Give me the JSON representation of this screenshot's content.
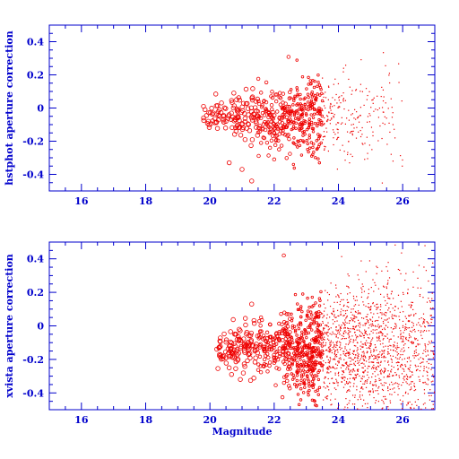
{
  "colors": {
    "axis": "#0000cc",
    "points": "#ee0000",
    "background": "#ffffff"
  },
  "chart_data": [
    {
      "type": "scatter",
      "title": "",
      "xlabel": "",
      "ylabel": "hstphot aperture correction",
      "xlim": [
        15,
        27
      ],
      "ylim": [
        -0.5,
        0.5
      ],
      "xticks": [
        16,
        18,
        20,
        22,
        24,
        26
      ],
      "yticks": [
        -0.4,
        -0.2,
        0,
        0.2,
        0.4
      ],
      "grid": false,
      "description": "circles grow larger for brighter stars",
      "cloud": {
        "count": 700,
        "seed": 17,
        "mag_range": [
          19.8,
          26.0
        ],
        "mag_peak": 22.8,
        "center": -0.06,
        "spread_bright": 0.04,
        "spread_faint": 0.18
      },
      "points": [
        [
          19.8,
          0.01
        ],
        [
          20.1,
          -0.03
        ],
        [
          20.3,
          -0.05
        ],
        [
          20.5,
          -0.08
        ],
        [
          20.6,
          -0.04
        ],
        [
          20.8,
          -0.07
        ],
        [
          21.0,
          -0.1
        ],
        [
          21.3,
          -0.06
        ],
        [
          21.5,
          -0.02
        ],
        [
          21.0,
          -0.37
        ],
        [
          21.3,
          -0.44
        ],
        [
          20.6,
          -0.33
        ],
        [
          22.0,
          -0.31
        ],
        [
          22.6,
          -0.34
        ],
        [
          23.4,
          0.0
        ],
        [
          23.1,
          -0.18
        ],
        [
          25.7,
          -0.1
        ],
        [
          25.7,
          -0.32
        ],
        [
          25.1,
          -0.02
        ]
      ]
    },
    {
      "type": "scatter",
      "title": "",
      "xlabel": "Magnitude",
      "ylabel": "xvista aperture correction",
      "xlim": [
        15,
        27
      ],
      "ylim": [
        -0.5,
        0.5
      ],
      "xticks": [
        16,
        18,
        20,
        22,
        24,
        26
      ],
      "yticks": [
        -0.4,
        -0.2,
        0,
        0.2,
        0.4
      ],
      "grid": false,
      "description": "circles grow larger for brighter stars",
      "cloud": {
        "count": 2200,
        "seed": 91,
        "mag_range": [
          20.2,
          27.0
        ],
        "mag_peak": 24.8,
        "center": -0.14,
        "spread_bright": 0.05,
        "spread_faint": 0.26
      },
      "points": [
        [
          20.3,
          -0.17
        ],
        [
          20.5,
          -0.19
        ],
        [
          20.7,
          -0.16
        ],
        [
          20.9,
          -0.09
        ],
        [
          21.1,
          -0.12
        ],
        [
          21.2,
          -0.1
        ],
        [
          21.4,
          -0.15
        ],
        [
          20.8,
          -0.05
        ],
        [
          22.3,
          0.42
        ],
        [
          21.3,
          0.13
        ],
        [
          22.0,
          -0.08
        ],
        [
          21.7,
          -0.2
        ],
        [
          22.5,
          -0.12
        ],
        [
          20.6,
          -0.25
        ]
      ]
    }
  ]
}
